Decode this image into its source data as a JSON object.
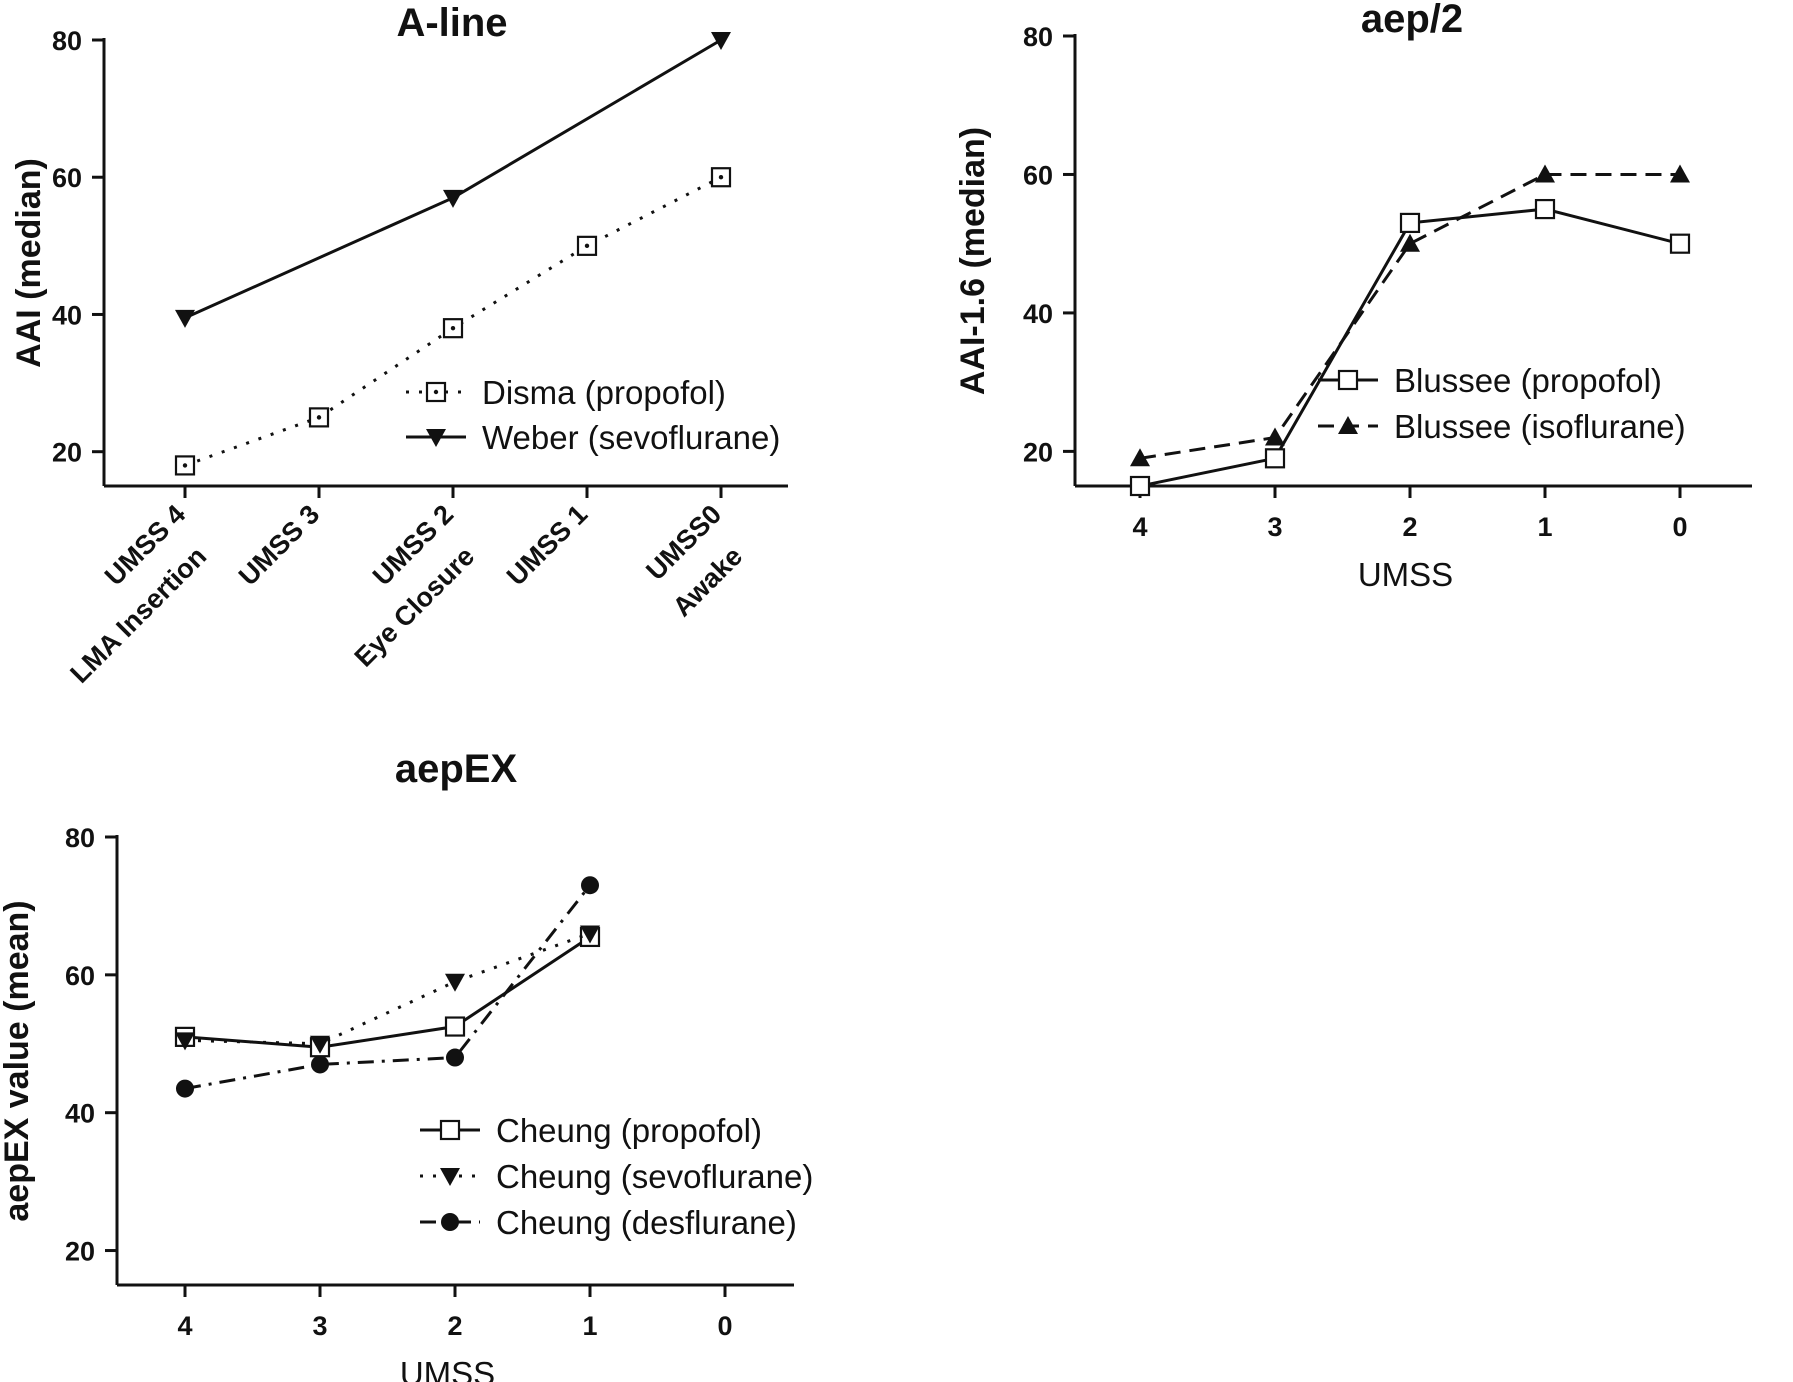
{
  "chart_data": [
    {
      "type": "line",
      "title": "A-line",
      "xlabel": "",
      "ylabel": "AAI (median)",
      "ylim": [
        15,
        80
      ],
      "yticks": [
        20,
        40,
        60,
        80
      ],
      "categories": [
        [
          "UMSS 4",
          "LMA Insertion"
        ],
        [
          "UMSS 3"
        ],
        [
          "UMSS 2",
          "Eye Closure"
        ],
        [
          "UMSS 1"
        ],
        [
          "UMSS0",
          "Awake"
        ]
      ],
      "legend_position": "bottom-right",
      "series": [
        {
          "name": "Disma (propofol)",
          "values": [
            18,
            25,
            38,
            50,
            60
          ],
          "line_style": "dotted",
          "marker": "square-open",
          "marker_dot": true
        },
        {
          "name": "Weber (sevoflurane)",
          "values": [
            39.5,
            null,
            57,
            null,
            80
          ],
          "line_style": "solid",
          "marker": "triangle-down"
        }
      ]
    },
    {
      "type": "line",
      "title": "aep/2",
      "xlabel": "UMSS",
      "ylabel": "AAI-1.6 (median)",
      "ylim": [
        15,
        80
      ],
      "yticks": [
        20,
        40,
        60,
        80
      ],
      "categories": [
        "4",
        "3",
        "2",
        "1",
        "0"
      ],
      "legend_position": "bottom-right",
      "series": [
        {
          "name": "Blussee (propofol)",
          "values": [
            15,
            19,
            53,
            55,
            50
          ],
          "line_style": "solid",
          "marker": "square-open"
        },
        {
          "name": "Blussee (isoflurane)",
          "values": [
            19,
            22,
            50,
            60,
            60
          ],
          "line_style": "dashed",
          "marker": "triangle-up"
        }
      ]
    },
    {
      "type": "line",
      "title": "aepEX",
      "xlabel": "UMSS",
      "ylabel": "aepEX value (mean)",
      "ylim": [
        15,
        80
      ],
      "yticks": [
        20,
        40,
        60,
        80
      ],
      "categories": [
        "4",
        "3",
        "2",
        "1",
        "0"
      ],
      "legend_position": "bottom-right",
      "series": [
        {
          "name": "Cheung (propofol)",
          "values": [
            51,
            49.5,
            52.5,
            65.5,
            null
          ],
          "line_style": "solid",
          "marker": "square-open"
        },
        {
          "name": "Cheung (sevoflurane)",
          "values": [
            50.5,
            50,
            59,
            66,
            null
          ],
          "line_style": "dotted",
          "marker": "triangle-down"
        },
        {
          "name": "Cheung (desflurane)",
          "values": [
            43.5,
            47,
            48,
            73,
            null
          ],
          "line_style": "dashdot",
          "marker": "circle"
        }
      ]
    }
  ]
}
